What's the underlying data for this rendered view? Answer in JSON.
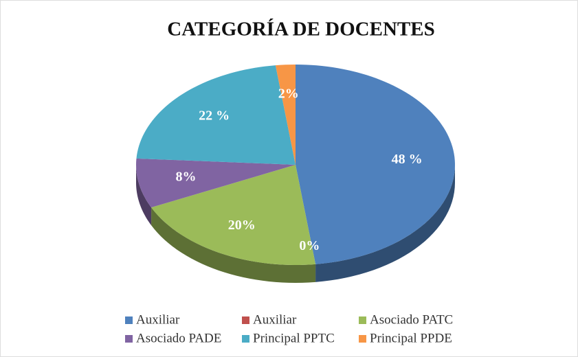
{
  "chart_data": {
    "type": "pie",
    "title": "CATEGORÍA DE DOCENTES",
    "categories": [
      "Auxiliar",
      "Auxiliar",
      "Asociado PATC",
      "Asociado PADE",
      "Principal PPTC",
      "Principal PPDE"
    ],
    "values": [
      48,
      0,
      20,
      8,
      22,
      2
    ],
    "value_labels": [
      "48 %",
      "0%",
      "20%",
      "8%",
      "22 %",
      "2%"
    ],
    "colors": [
      "#4f81bd",
      "#c0504d",
      "#9bbb59",
      "#8064a2",
      "#4bacc6",
      "#f79646"
    ],
    "legend": "bottom"
  }
}
